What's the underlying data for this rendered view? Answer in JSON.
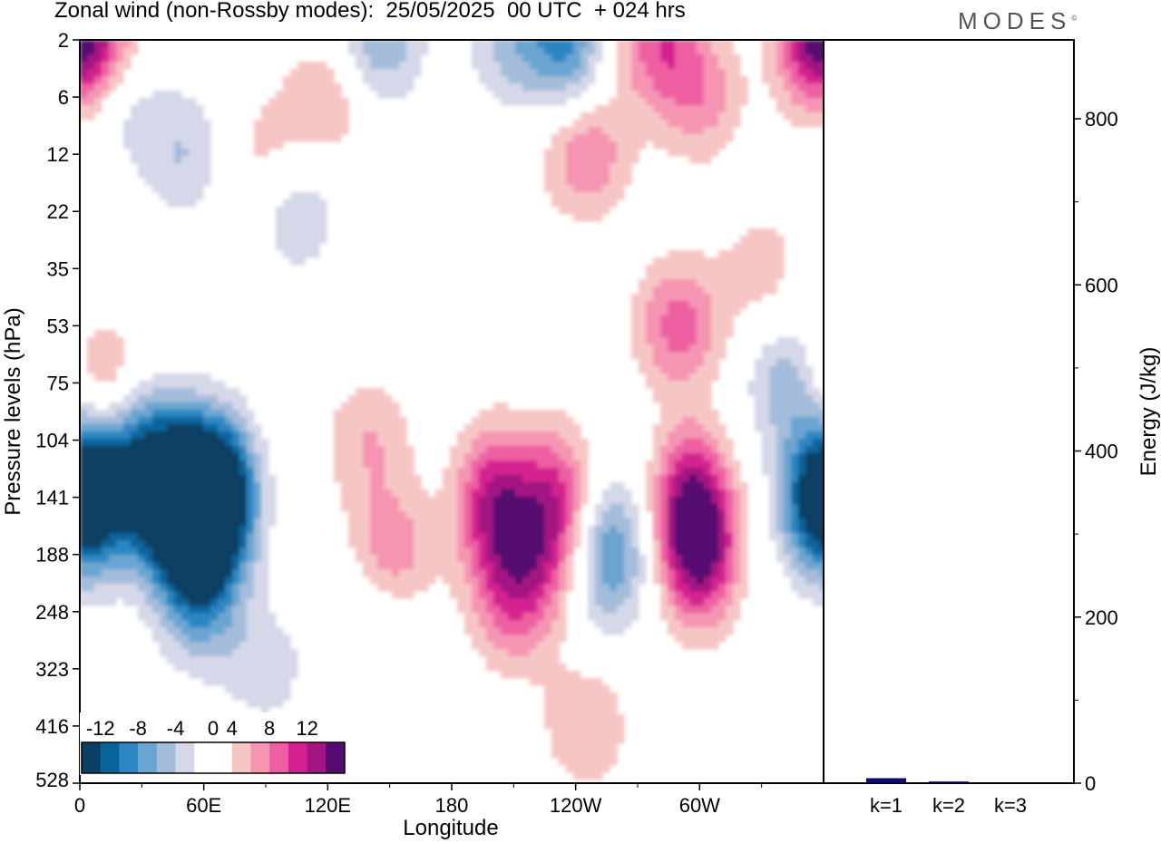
{
  "header": {
    "title": "Zonal wind (non-Rossby modes):  25/05/2025  00 UTC  + 024 hrs",
    "brand": "MODES",
    "brand_mark": "©"
  },
  "colors": {
    "blues": [
      "#0b3f63",
      "#07649b",
      "#2b86c2",
      "#6aa5d1",
      "#a3bcda",
      "#d5d8e8"
    ],
    "reds": [
      "#f6c6c4",
      "#f595b2",
      "#ee5ea2",
      "#d3208f",
      "#a21582",
      "#540b70"
    ],
    "energy_bar": "#0b0b7a"
  },
  "chart_data": [
    {
      "type": "heatmap",
      "title": "Zonal wind (non-Rossby modes):  25/05/2025  00 UTC  + 024 hrs",
      "xlabel": "Longitude",
      "ylabel": "Pressure levels (hPa)",
      "x_ticks": [
        "0",
        "60E",
        "120E",
        "180",
        "120W",
        "60W"
      ],
      "x_tick_values": [
        0,
        60,
        120,
        180,
        240,
        300
      ],
      "xlim": [
        0,
        360
      ],
      "y_ticks": [
        "2",
        "6",
        "12",
        "22",
        "35",
        "53",
        "75",
        "104",
        "141",
        "188",
        "248",
        "323",
        "416",
        "528"
      ],
      "colorbar": {
        "labels": [
          "-12",
          "-8",
          "-4",
          "0",
          "4",
          "8",
          "12"
        ],
        "label_values": [
          -12,
          -8,
          -4,
          0,
          4,
          8,
          12
        ],
        "levels": [
          -14,
          -12,
          -10,
          -8,
          -6,
          -4,
          -2,
          2,
          4,
          6,
          8,
          10,
          12,
          14
        ]
      },
      "features": [
        {
          "lon": 8,
          "level": 141,
          "value": -11
        },
        {
          "lon": 38,
          "level": 141,
          "value": -12
        },
        {
          "lon": 58,
          "level": 141,
          "value": -12
        },
        {
          "lon": 67,
          "level": 141,
          "value": -14
        },
        {
          "lon": 55,
          "level": 188,
          "value": -8
        },
        {
          "lon": 30,
          "level": 104,
          "value": -6
        },
        {
          "lon": 60,
          "level": 248,
          "value": -4
        },
        {
          "lon": 90,
          "level": 323,
          "value": -3
        },
        {
          "lon": 356,
          "level": 141,
          "value": -10
        },
        {
          "lon": 257,
          "level": 188,
          "value": -8
        },
        {
          "lon": 345,
          "level": 75,
          "value": -6
        },
        {
          "lon": 16,
          "level": 6,
          "value": -4
        },
        {
          "lon": 50,
          "level": 12,
          "value": -4
        },
        {
          "lon": 105,
          "level": 22,
          "value": -4
        },
        {
          "lon": 145,
          "level": 2,
          "value": -6
        },
        {
          "lon": 236,
          "level": 2,
          "value": -8
        },
        {
          "lon": 210,
          "level": 2,
          "value": -5
        },
        {
          "lon": 140,
          "level": 248,
          "value": -3
        },
        {
          "lon": 140,
          "level": 104,
          "value": 4
        },
        {
          "lon": 150,
          "level": 188,
          "value": 6
        },
        {
          "lon": 200,
          "level": 141,
          "value": 9
        },
        {
          "lon": 215,
          "level": 188,
          "value": 7
        },
        {
          "lon": 230,
          "level": 141,
          "value": 8
        },
        {
          "lon": 210,
          "level": 248,
          "value": 5
        },
        {
          "lon": 300,
          "level": 188,
          "value": 11
        },
        {
          "lon": 296,
          "level": 141,
          "value": 9
        },
        {
          "lon": 245,
          "level": 416,
          "value": 4
        },
        {
          "lon": 8,
          "level": 75,
          "value": 6
        },
        {
          "lon": 290,
          "level": 53,
          "value": 7
        },
        {
          "lon": 355,
          "level": 2,
          "value": 10
        },
        {
          "lon": 10,
          "level": 2,
          "value": 8
        },
        {
          "lon": 280,
          "level": 2,
          "value": 7
        },
        {
          "lon": 245,
          "level": 12,
          "value": 6
        },
        {
          "lon": 300,
          "level": 6,
          "value": 5
        },
        {
          "lon": 120,
          "level": 6,
          "value": 4
        },
        {
          "lon": 90,
          "level": 12,
          "value": 3
        },
        {
          "lon": 330,
          "level": 35,
          "value": 3
        }
      ]
    },
    {
      "type": "bar",
      "ylabel": "Energy (J/kg)",
      "categories": [
        "k=1",
        "k=2",
        "k=3"
      ],
      "values": [
        6,
        2,
        0.5
      ],
      "ylim": [
        0,
        895
      ],
      "y_ticks": [
        0,
        200,
        400,
        600,
        800
      ]
    }
  ]
}
